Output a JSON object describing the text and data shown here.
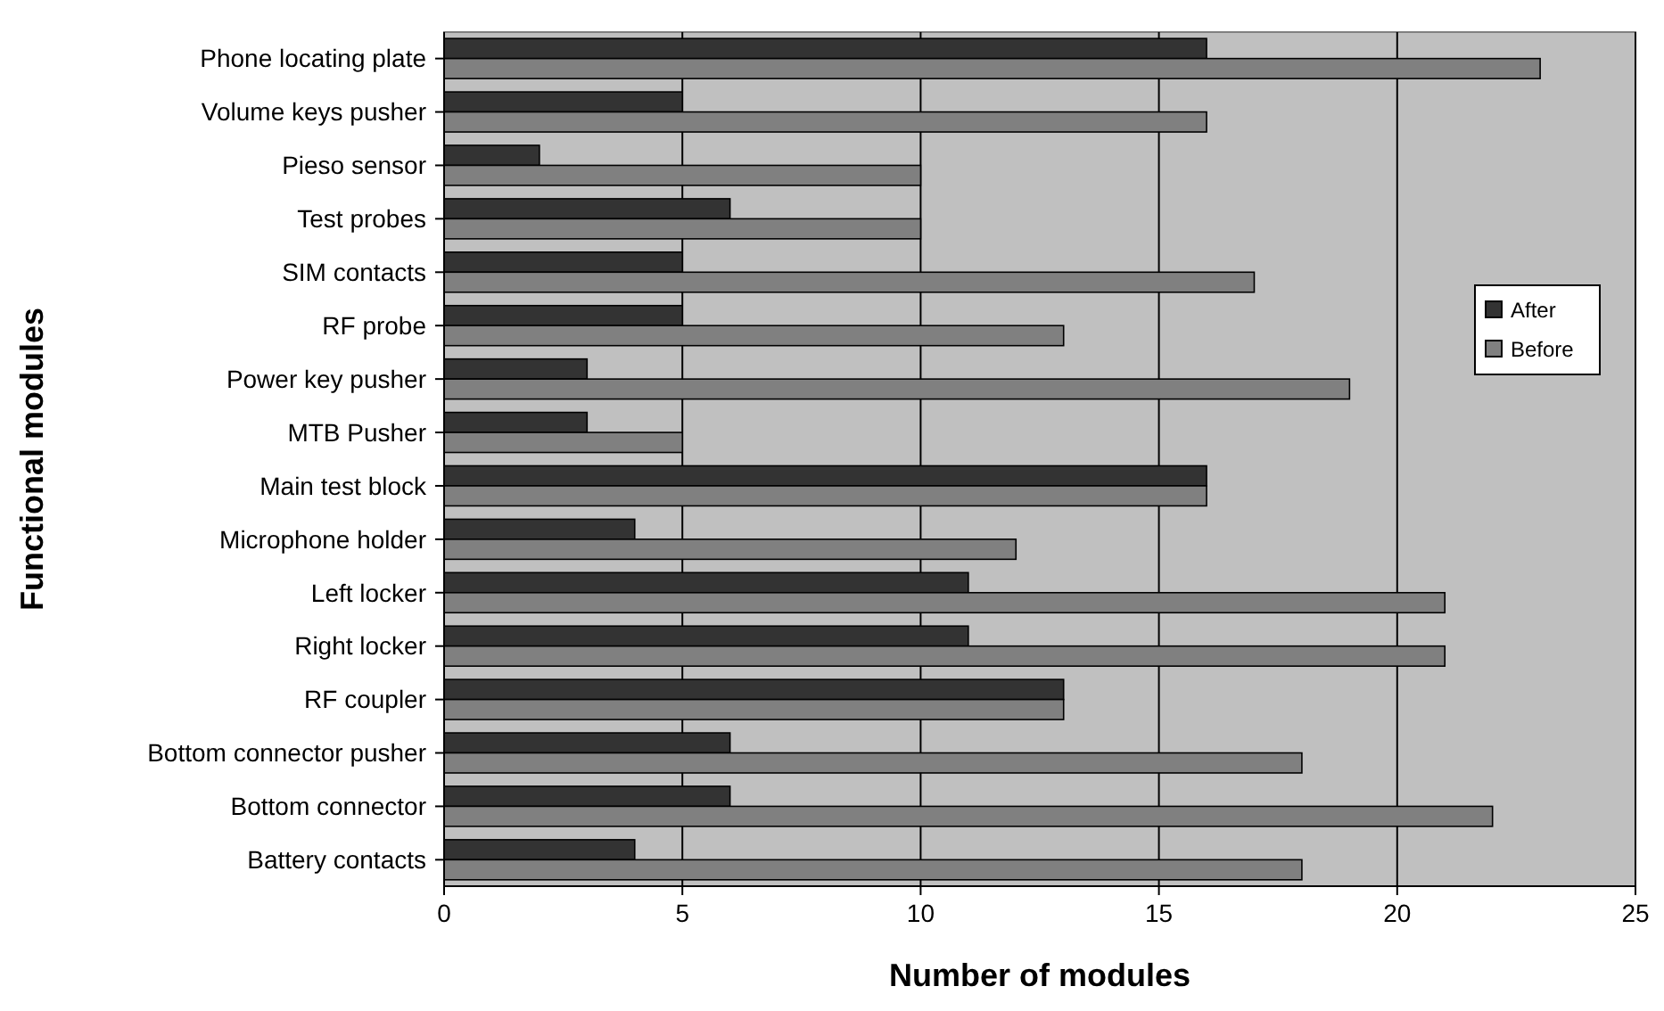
{
  "chart_data": {
    "type": "bar",
    "orientation": "horizontal",
    "xlabel": "Number of modules",
    "ylabel": "Functional modules",
    "categories": [
      "Phone locating plate",
      "Volume keys pusher",
      "Pieso sensor",
      "Test probes",
      "SIM contacts",
      "RF probe",
      "Power key pusher",
      "MTB Pusher",
      "Main test block",
      "Microphone holder",
      "Left locker",
      "Right locker",
      "RF coupler",
      "Bottom connector pusher",
      "Bottom connector",
      "Battery contacts"
    ],
    "series": [
      {
        "name": "After",
        "color": "#333333",
        "values": [
          16,
          5,
          2,
          6,
          5,
          5,
          3,
          3,
          16,
          4,
          11,
          11,
          13,
          6,
          6,
          4
        ]
      },
      {
        "name": "Before",
        "color": "#808080",
        "values": [
          23,
          16,
          10,
          10,
          17,
          13,
          19,
          5,
          16,
          12,
          21,
          21,
          13,
          18,
          22,
          18
        ]
      }
    ],
    "xlim": [
      0,
      25
    ],
    "xticks": [
      0,
      5,
      10,
      15,
      20,
      25
    ],
    "grid": "x",
    "legend": "right"
  }
}
